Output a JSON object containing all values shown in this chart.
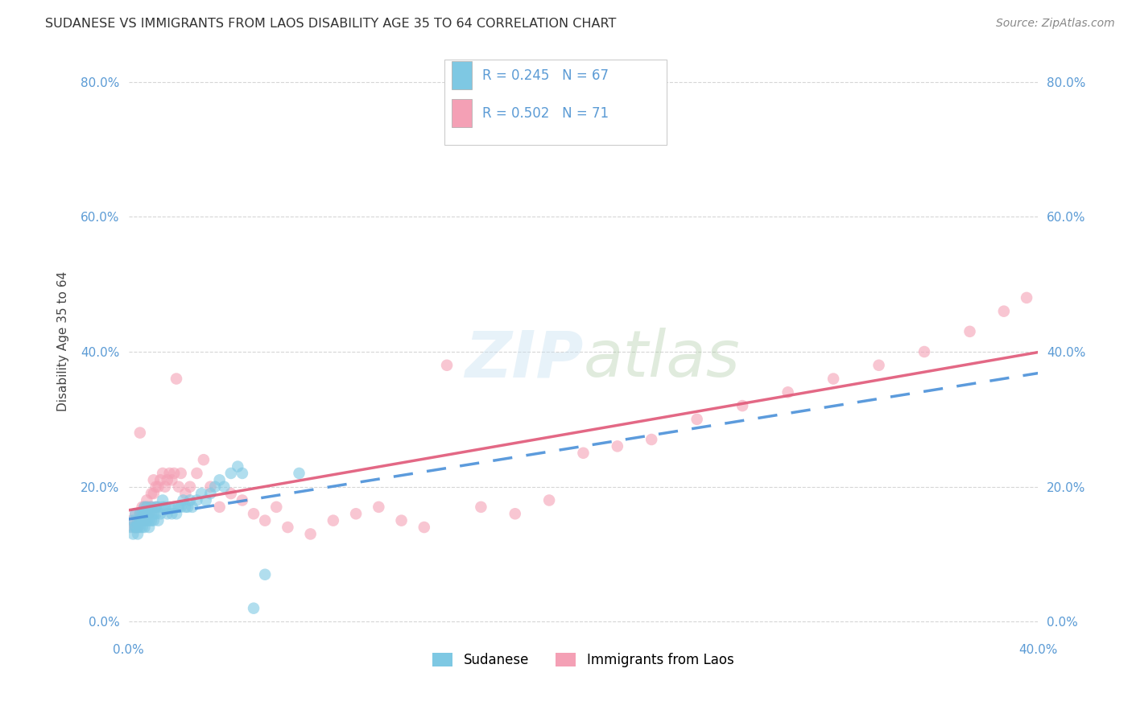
{
  "title": "SUDANESE VS IMMIGRANTS FROM LAOS DISABILITY AGE 35 TO 64 CORRELATION CHART",
  "source": "Source: ZipAtlas.com",
  "ylabel": "Disability Age 35 to 64",
  "legend_label1": "Sudanese",
  "legend_label2": "Immigrants from Laos",
  "R1": 0.245,
  "N1": 67,
  "R2": 0.502,
  "N2": 71,
  "color1": "#7ec8e3",
  "color2": "#f4a0b5",
  "trend_color1": "#4a90d9",
  "trend_color2": "#e05878",
  "background": "#ffffff",
  "xmin": 0.0,
  "xmax": 0.4,
  "ymin": -0.02,
  "ymax": 0.85,
  "yticks": [
    0.0,
    0.2,
    0.4,
    0.6,
    0.8
  ],
  "ytick_labels": [
    "0.0%",
    "20.0%",
    "40.0%",
    "60.0%",
    "80.0%"
  ],
  "xtick_labels_left": "0.0%",
  "xtick_labels_right": "40.0%",
  "sudanese_x": [
    0.001,
    0.002,
    0.002,
    0.003,
    0.003,
    0.003,
    0.004,
    0.004,
    0.004,
    0.005,
    0.005,
    0.005,
    0.005,
    0.006,
    0.006,
    0.006,
    0.006,
    0.007,
    0.007,
    0.007,
    0.007,
    0.007,
    0.008,
    0.008,
    0.008,
    0.008,
    0.009,
    0.009,
    0.009,
    0.01,
    0.01,
    0.01,
    0.011,
    0.011,
    0.012,
    0.012,
    0.013,
    0.013,
    0.014,
    0.015,
    0.015,
    0.016,
    0.017,
    0.018,
    0.019,
    0.02,
    0.021,
    0.022,
    0.023,
    0.024,
    0.025,
    0.026,
    0.027,
    0.028,
    0.03,
    0.032,
    0.034,
    0.036,
    0.038,
    0.04,
    0.042,
    0.045,
    0.048,
    0.05,
    0.055,
    0.06,
    0.075
  ],
  "sudanese_y": [
    0.14,
    0.15,
    0.13,
    0.14,
    0.14,
    0.16,
    0.14,
    0.15,
    0.13,
    0.15,
    0.15,
    0.14,
    0.16,
    0.15,
    0.16,
    0.14,
    0.15,
    0.16,
    0.17,
    0.15,
    0.16,
    0.14,
    0.15,
    0.17,
    0.16,
    0.15,
    0.16,
    0.15,
    0.14,
    0.16,
    0.15,
    0.17,
    0.16,
    0.15,
    0.17,
    0.16,
    0.17,
    0.15,
    0.16,
    0.17,
    0.18,
    0.17,
    0.16,
    0.17,
    0.16,
    0.17,
    0.16,
    0.17,
    0.17,
    0.18,
    0.17,
    0.17,
    0.18,
    0.17,
    0.18,
    0.19,
    0.18,
    0.19,
    0.2,
    0.21,
    0.2,
    0.22,
    0.23,
    0.22,
    0.02,
    0.07,
    0.22
  ],
  "laos_x": [
    0.001,
    0.002,
    0.003,
    0.003,
    0.004,
    0.004,
    0.005,
    0.005,
    0.005,
    0.006,
    0.006,
    0.006,
    0.007,
    0.007,
    0.007,
    0.008,
    0.008,
    0.008,
    0.009,
    0.009,
    0.01,
    0.01,
    0.011,
    0.011,
    0.012,
    0.012,
    0.013,
    0.014,
    0.015,
    0.016,
    0.017,
    0.018,
    0.019,
    0.02,
    0.021,
    0.022,
    0.023,
    0.025,
    0.027,
    0.03,
    0.033,
    0.036,
    0.04,
    0.045,
    0.05,
    0.055,
    0.06,
    0.065,
    0.07,
    0.08,
    0.09,
    0.1,
    0.11,
    0.12,
    0.13,
    0.14,
    0.155,
    0.17,
    0.185,
    0.2,
    0.215,
    0.23,
    0.25,
    0.27,
    0.29,
    0.31,
    0.33,
    0.35,
    0.37,
    0.385,
    0.395
  ],
  "laos_y": [
    0.15,
    0.14,
    0.16,
    0.14,
    0.15,
    0.14,
    0.15,
    0.16,
    0.28,
    0.15,
    0.16,
    0.17,
    0.16,
    0.17,
    0.15,
    0.16,
    0.17,
    0.18,
    0.17,
    0.16,
    0.19,
    0.17,
    0.21,
    0.19,
    0.2,
    0.17,
    0.2,
    0.21,
    0.22,
    0.2,
    0.21,
    0.22,
    0.21,
    0.22,
    0.36,
    0.2,
    0.22,
    0.19,
    0.2,
    0.22,
    0.24,
    0.2,
    0.17,
    0.19,
    0.18,
    0.16,
    0.15,
    0.17,
    0.14,
    0.13,
    0.15,
    0.16,
    0.17,
    0.15,
    0.14,
    0.38,
    0.17,
    0.16,
    0.18,
    0.25,
    0.26,
    0.27,
    0.3,
    0.32,
    0.34,
    0.36,
    0.38,
    0.4,
    0.43,
    0.46,
    0.48
  ]
}
